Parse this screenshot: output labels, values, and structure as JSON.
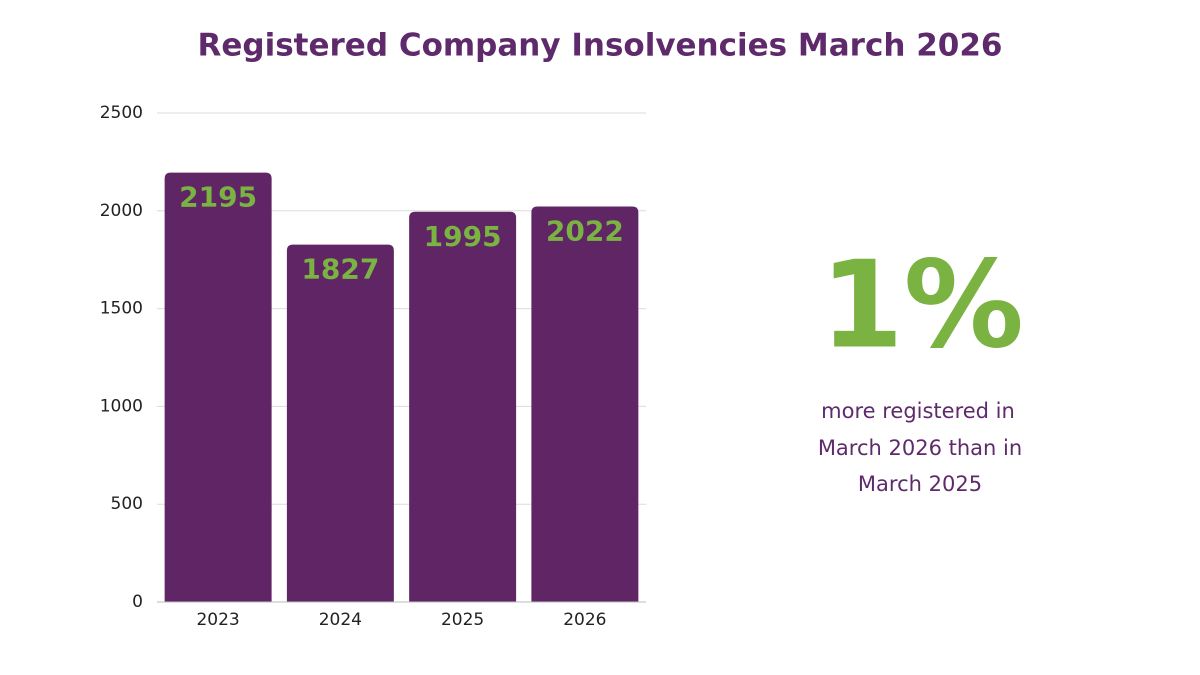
{
  "chart_data": {
    "type": "bar",
    "title": "Registered Company Insolvencies March 2026",
    "categories": [
      "2023",
      "2024",
      "2025",
      "2026"
    ],
    "values": [
      2195,
      1827,
      1995,
      2022
    ],
    "color": "#5f2565",
    "label_color": "#7ab342",
    "ylim": [
      0,
      2500
    ],
    "yticks": [
      0,
      500,
      1000,
      1500,
      2000,
      2500
    ],
    "grid": true,
    "callout": {
      "headline": "1%",
      "lines": [
        "more registered in",
        "March 2026 than in",
        "March 2025"
      ]
    }
  }
}
